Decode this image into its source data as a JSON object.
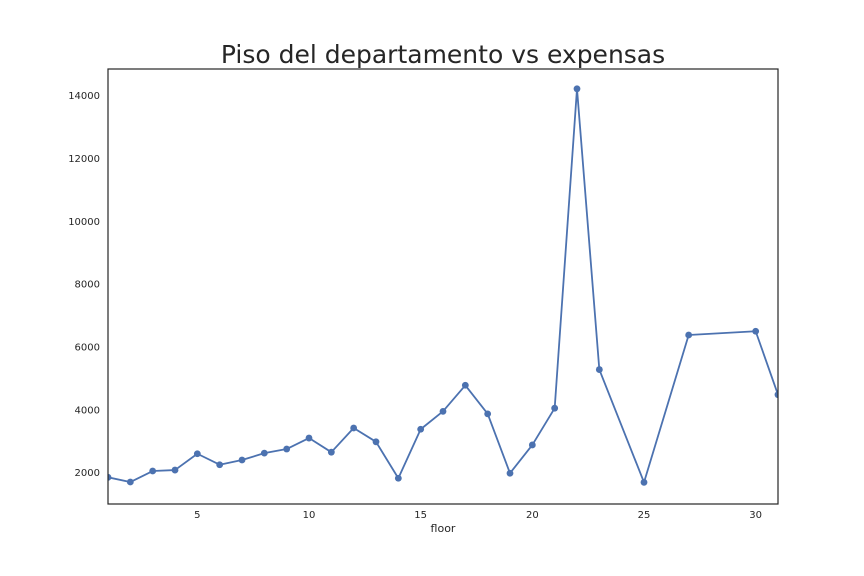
{
  "chart_data": {
    "type": "line",
    "title": "Piso del departamento vs expensas",
    "xlabel": "floor",
    "ylabel": "",
    "xlim": [
      1,
      31
    ],
    "ylim": [
      1000,
      14850
    ],
    "x_ticks": [
      5,
      10,
      15,
      20,
      25,
      30
    ],
    "y_ticks": [
      2000,
      4000,
      6000,
      8000,
      10000,
      12000,
      14000
    ],
    "grid": false,
    "color": "#4c72b0",
    "series": [
      {
        "x": [
          1,
          2,
          3,
          4,
          5,
          6,
          7,
          8,
          9,
          10,
          11,
          12,
          13,
          14,
          15,
          16,
          17,
          18,
          19,
          20,
          21,
          22,
          23,
          25,
          27,
          30,
          31
        ],
        "values": [
          1850,
          1700,
          2050,
          2080,
          2600,
          2250,
          2400,
          2620,
          2750,
          3100,
          2650,
          3420,
          2980,
          1820,
          3380,
          3950,
          4780,
          3870,
          1980,
          2880,
          4050,
          14220,
          5280,
          1690,
          6380,
          6500,
          4480
        ]
      }
    ]
  }
}
